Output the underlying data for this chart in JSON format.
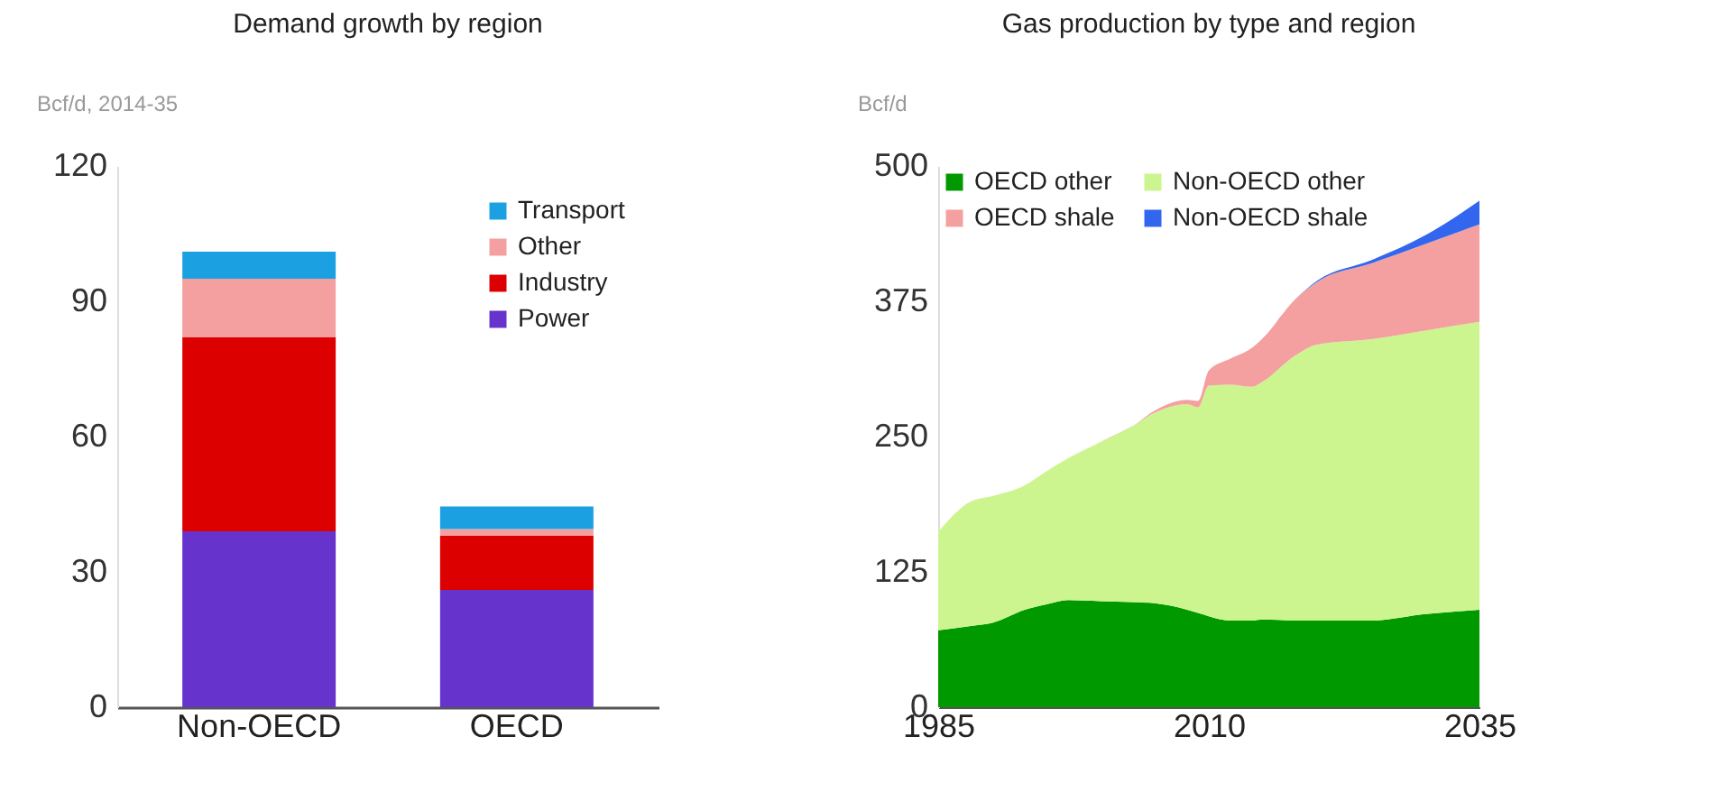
{
  "chart_data": [
    {
      "type": "bar",
      "title": "Demand growth by region",
      "ylabel": "Bcf/d, 2014-35",
      "categories": [
        "Non-OECD",
        "OECD"
      ],
      "stacked": true,
      "legend": "top right",
      "ylim": [
        0,
        120
      ],
      "yticks": [
        0,
        30,
        60,
        90,
        120
      ],
      "series": [
        {
          "name": "Power",
          "color": "#6633cc",
          "values": [
            39,
            26
          ]
        },
        {
          "name": "Industry",
          "color": "#dd0000",
          "values": [
            43,
            12
          ]
        },
        {
          "name": "Other",
          "color": "#f4a0a0",
          "values": [
            13,
            1.5
          ]
        },
        {
          "name": "Transport",
          "color": "#1ba1e2",
          "values": [
            6,
            5
          ]
        }
      ]
    },
    {
      "type": "area",
      "title": "Gas production by type and region",
      "ylabel": "Bcf/d",
      "stacked": true,
      "legend": "top",
      "xlim": [
        1985,
        2035
      ],
      "xticks": [
        1985,
        2010,
        2035
      ],
      "ylim": [
        0,
        500
      ],
      "yticks": [
        0,
        125,
        250,
        375,
        500
      ],
      "x": [
        1985,
        1988,
        1990,
        1993,
        1995,
        1997,
        2000,
        2003,
        2005,
        2008,
        2009,
        2010,
        2012,
        2014,
        2015,
        2018,
        2020,
        2025,
        2030,
        2035
      ],
      "series": [
        {
          "name": "OECD other",
          "color": "#009900",
          "values": [
            71,
            75,
            78,
            90,
            95,
            99,
            98,
            97,
            96,
            90,
            87,
            84,
            80,
            80,
            81,
            80,
            80,
            80,
            86,
            90
          ]
        },
        {
          "name": "Non-OECD other",
          "color": "#ccf58f",
          "values": [
            91,
            115,
            117,
            115,
            123,
            131,
            147,
            163,
            176,
            190,
            190,
            213,
            218,
            216,
            220,
            245,
            255,
            260,
            262,
            266
          ]
        },
        {
          "name": "OECD shale",
          "color": "#f4a0a0",
          "values": [
            0,
            0,
            0,
            0,
            0,
            0,
            0,
            0,
            2,
            4,
            6,
            14,
            24,
            36,
            40,
            52,
            58,
            70,
            80,
            90
          ]
        },
        {
          "name": "Non-OECD shale",
          "color": "#3366ee",
          "values": [
            0,
            0,
            0,
            0,
            0,
            0,
            0,
            0,
            0,
            0,
            0,
            0,
            0,
            0,
            0,
            0,
            1,
            3,
            8,
            22
          ]
        }
      ]
    }
  ]
}
